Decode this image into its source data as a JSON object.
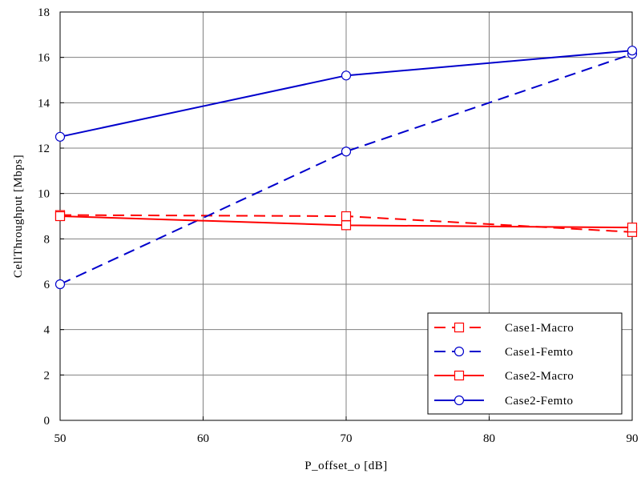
{
  "chart_data": {
    "type": "line",
    "title": "",
    "xlabel": "P_offset_o [dB]",
    "ylabel": "CellThroughput [Mbps]",
    "x": [
      50,
      70,
      90
    ],
    "xlim": [
      50,
      90
    ],
    "ylim": [
      0,
      18
    ],
    "xticks": [
      50,
      60,
      70,
      80,
      90
    ],
    "yticks": [
      0,
      2,
      4,
      6,
      8,
      10,
      12,
      14,
      16,
      18
    ],
    "xtick_labels": [
      "50",
      "60",
      "70",
      "80",
      "90"
    ],
    "ytick_labels": [
      "0",
      "2",
      "4",
      "6",
      "8",
      "10",
      "12",
      "14",
      "16",
      "18"
    ],
    "grid": true,
    "legend_position": "bottom-right",
    "series": [
      {
        "name": "Case1-Macro",
        "values": [
          9.05,
          9.0,
          8.3
        ],
        "color": "#ff0000",
        "dash": "dashed",
        "marker": "square"
      },
      {
        "name": "Case1-Femto",
        "values": [
          6.0,
          11.85,
          16.15
        ],
        "color": "#0000cc",
        "dash": "dashed",
        "marker": "circle"
      },
      {
        "name": "Case2-Macro",
        "values": [
          9.0,
          8.6,
          8.5
        ],
        "color": "#ff0000",
        "dash": "solid",
        "marker": "square"
      },
      {
        "name": "Case2-Femto",
        "values": [
          12.5,
          15.2,
          16.3
        ],
        "color": "#0000cc",
        "dash": "solid",
        "marker": "circle"
      }
    ]
  }
}
